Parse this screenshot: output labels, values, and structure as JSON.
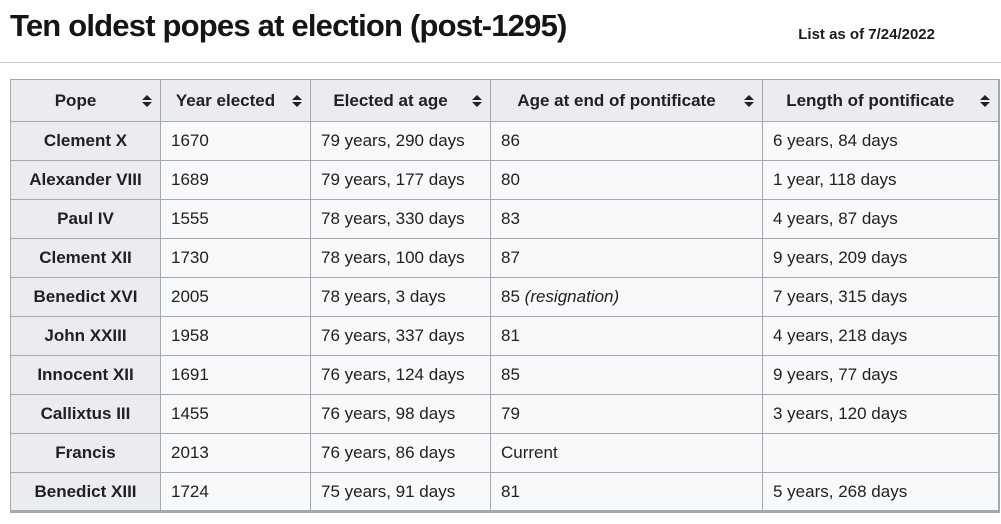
{
  "page": {
    "title": "Ten oldest popes at election (post-1295)",
    "note": "List as of 7/24/2022"
  },
  "colors": {
    "header_bg": "#eaecf0",
    "cell_bg": "#f8f9fa",
    "border": "#a2a9b1",
    "text": "#202122",
    "divider": "#c8ccd1"
  },
  "table": {
    "columns": [
      {
        "label": "Pope",
        "sortable": true
      },
      {
        "label": "Year elected",
        "sortable": true
      },
      {
        "label": "Elected at age",
        "sortable": true
      },
      {
        "label": "Age at end of pontificate",
        "sortable": true
      },
      {
        "label": "Length of pontificate",
        "sortable": true
      }
    ],
    "rows": [
      {
        "pope": "Clement X",
        "year_elected": "1670",
        "elected_at_age": "79 years, 290 days",
        "age_at_end": "86",
        "age_note": "",
        "length": "6 years, 84 days",
        "length_note": ""
      },
      {
        "pope": "Alexander VIII",
        "year_elected": "1689",
        "elected_at_age": "79 years, 177 days",
        "age_at_end": "80",
        "age_note": "",
        "length": "1 year, 118 days",
        "length_note": ""
      },
      {
        "pope": "Paul IV",
        "year_elected": "1555",
        "elected_at_age": "78 years, 330 days",
        "age_at_end": "83",
        "age_note": "",
        "length": "4 years, 87 days",
        "length_note": ""
      },
      {
        "pope": "Clement XII",
        "year_elected": "1730",
        "elected_at_age": "78 years, 100 days",
        "age_at_end": "87",
        "age_note": "",
        "length": "9 years, 209 days",
        "length_note": ""
      },
      {
        "pope": "Benedict XVI",
        "year_elected": "2005",
        "elected_at_age": "78 years, 3 days",
        "age_at_end": "85",
        "age_note": "(resignation)",
        "length": "7 years, 315 days",
        "length_note": ""
      },
      {
        "pope": "John XXIII",
        "year_elected": "1958",
        "elected_at_age": "76 years, 337 days",
        "age_at_end": "81",
        "age_note": "",
        "length": "4 years, 218 days",
        "length_note": ""
      },
      {
        "pope": "Innocent XII",
        "year_elected": "1691",
        "elected_at_age": "76 years, 124 days",
        "age_at_end": "85",
        "age_note": "",
        "length": "9 years, 77 days",
        "length_note": ""
      },
      {
        "pope": "Callixtus III",
        "year_elected": "1455",
        "elected_at_age": "76 years, 98 days",
        "age_at_end": "79",
        "age_note": "",
        "length": "3 years, 120 days",
        "length_note": ""
      },
      {
        "pope": "Francis",
        "year_elected": "2013",
        "elected_at_age": "76 years, 86 days",
        "age_at_end": "Current",
        "age_note": "",
        "length": "",
        "length_note": "..."
      },
      {
        "pope": "Benedict XIII",
        "year_elected": "1724",
        "elected_at_age": "75 years, 91 days",
        "age_at_end": "81",
        "age_note": "",
        "length": "5 years, 268 days",
        "length_note": ""
      }
    ]
  },
  "chart_data": {
    "type": "table",
    "title": "Ten oldest popes at election (post-1295)",
    "annotation": "List as of 7/24/2022",
    "columns": [
      "Pope",
      "Year elected",
      "Elected at age",
      "Age at end of pontificate",
      "Length of pontificate"
    ],
    "rows": [
      [
        "Clement X",
        "1670",
        "79 years, 290 days",
        "86",
        "6 years, 84 days"
      ],
      [
        "Alexander VIII",
        "1689",
        "79 years, 177 days",
        "80",
        "1 year, 118 days"
      ],
      [
        "Paul IV",
        "1555",
        "78 years, 330 days",
        "83",
        "4 years, 87 days"
      ],
      [
        "Clement XII",
        "1730",
        "78 years, 100 days",
        "87",
        "9 years, 209 days"
      ],
      [
        "Benedict XVI",
        "2005",
        "78 years, 3 days",
        "85 (resignation)",
        "7 years, 315 days"
      ],
      [
        "John XXIII",
        "1958",
        "76 years, 337 days",
        "81",
        "4 years, 218 days"
      ],
      [
        "Innocent XII",
        "1691",
        "76 years, 124 days",
        "85",
        "9 years, 77 days"
      ],
      [
        "Callixtus III",
        "1455",
        "76 years, 98 days",
        "79",
        "3 years, 120 days"
      ],
      [
        "Francis",
        "2013",
        "76 years, 86 days",
        "Current",
        ""
      ],
      [
        "Benedict XIII",
        "1724",
        "75 years, 91 days",
        "81",
        "5 years, 268 days"
      ]
    ]
  }
}
